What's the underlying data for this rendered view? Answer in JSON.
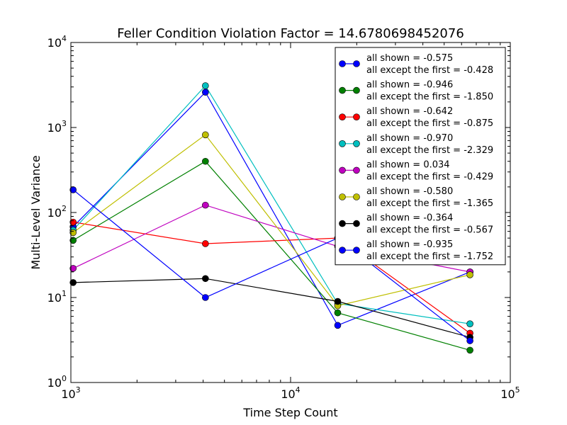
{
  "chart_data": {
    "type": "line",
    "title": "Feller Condition Violation Factor = 14.6780698452076",
    "xlabel": "Time Step Count",
    "ylabel": "Multi-Level Variance",
    "xscale": "log",
    "yscale": "log",
    "xlim": [
      1000,
      100000
    ],
    "ylim": [
      1,
      10000
    ],
    "x_ticks": [
      {
        "value": 1000,
        "base": "10",
        "exp": "3"
      },
      {
        "value": 10000,
        "base": "10",
        "exp": "4"
      },
      {
        "value": 100000,
        "base": "10",
        "exp": "5"
      }
    ],
    "y_ticks": [
      {
        "value": 1,
        "base": "10",
        "exp": "0"
      },
      {
        "value": 10,
        "base": "10",
        "exp": "1"
      },
      {
        "value": 100,
        "base": "10",
        "exp": "2"
      },
      {
        "value": 1000,
        "base": "10",
        "exp": "3"
      },
      {
        "value": 10000,
        "base": "10",
        "exp": "4"
      }
    ],
    "grid": false,
    "legend_position": "top-right",
    "x": [
      1024,
      4096,
      16384,
      65536
    ],
    "series": [
      {
        "color": "#0000ff",
        "legend_line1": "all shown = -0.575",
        "legend_line2": "all except the first = -0.428",
        "values": [
          68,
          2600,
          4.7,
          20
        ]
      },
      {
        "color": "#008000",
        "legend_line1": "all shown = -0.946",
        "legend_line2": "all except the first = -1.850",
        "values": [
          47,
          400,
          6.6,
          2.4
        ]
      },
      {
        "color": "#ff0000",
        "legend_line1": "all shown = -0.642",
        "legend_line2": "all except the first = -0.875",
        "values": [
          77,
          43,
          50,
          3.8
        ]
      },
      {
        "color": "#00bfbf",
        "legend_line1": "all shown = -0.970",
        "legend_line2": "all except the first = -2.329",
        "values": [
          62,
          3100,
          8.5,
          4.9
        ]
      },
      {
        "color": "#bf00bf",
        "legend_line1": "all shown = 0.034",
        "legend_line2": "all except the first = -0.429",
        "values": [
          22,
          122,
          40,
          20
        ]
      },
      {
        "color": "#bfbf00",
        "legend_line1": "all shown = -0.580",
        "legend_line2": "all except the first = -1.365",
        "values": [
          58,
          820,
          8.0,
          18.5
        ]
      },
      {
        "color": "#000000",
        "legend_line1": "all shown = -0.364",
        "legend_line2": "all except the first = -0.567",
        "values": [
          15,
          16.7,
          9.0,
          3.4
        ]
      },
      {
        "color": "#0000ff",
        "legend_line1": "all shown = -0.935",
        "legend_line2": "all except the first = -1.752",
        "values": [
          185,
          10,
          50,
          3.1
        ]
      }
    ]
  }
}
